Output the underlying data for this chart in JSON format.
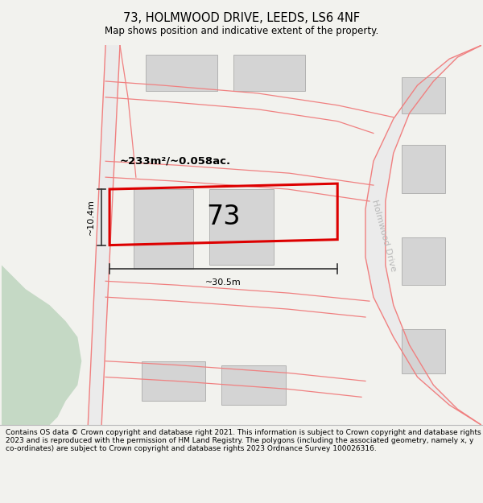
{
  "title": "73, HOLMWOOD DRIVE, LEEDS, LS6 4NF",
  "subtitle": "Map shows position and indicative extent of the property.",
  "footer": "Contains OS data © Crown copyright and database right 2021. This information is subject to Crown copyright and database rights 2023 and is reproduced with the permission of HM Land Registry. The polygons (including the associated geometry, namely x, y co-ordinates) are subject to Crown copyright and database rights 2023 Ordnance Survey 100026316.",
  "bg_color": "#f2f2ee",
  "map_bg": "#ffffff",
  "road_color": "#f08080",
  "building_color": "#d4d4d4",
  "building_edge": "#aaaaaa",
  "green_color": "#c5d9c5",
  "highlight_color": "#dd0000",
  "highlight_lw": 2.2,
  "property_label": "73",
  "area_label": "~233m²/~0.058ac.",
  "width_label": "~30.5m",
  "height_label": "~10.4m",
  "title_fontsize": 10.5,
  "subtitle_fontsize": 8.5,
  "footer_fontsize": 6.5,
  "road_label": "Holmwood Drive",
  "road_label_color": "#b8b8b8",
  "dim_color": "#333333"
}
